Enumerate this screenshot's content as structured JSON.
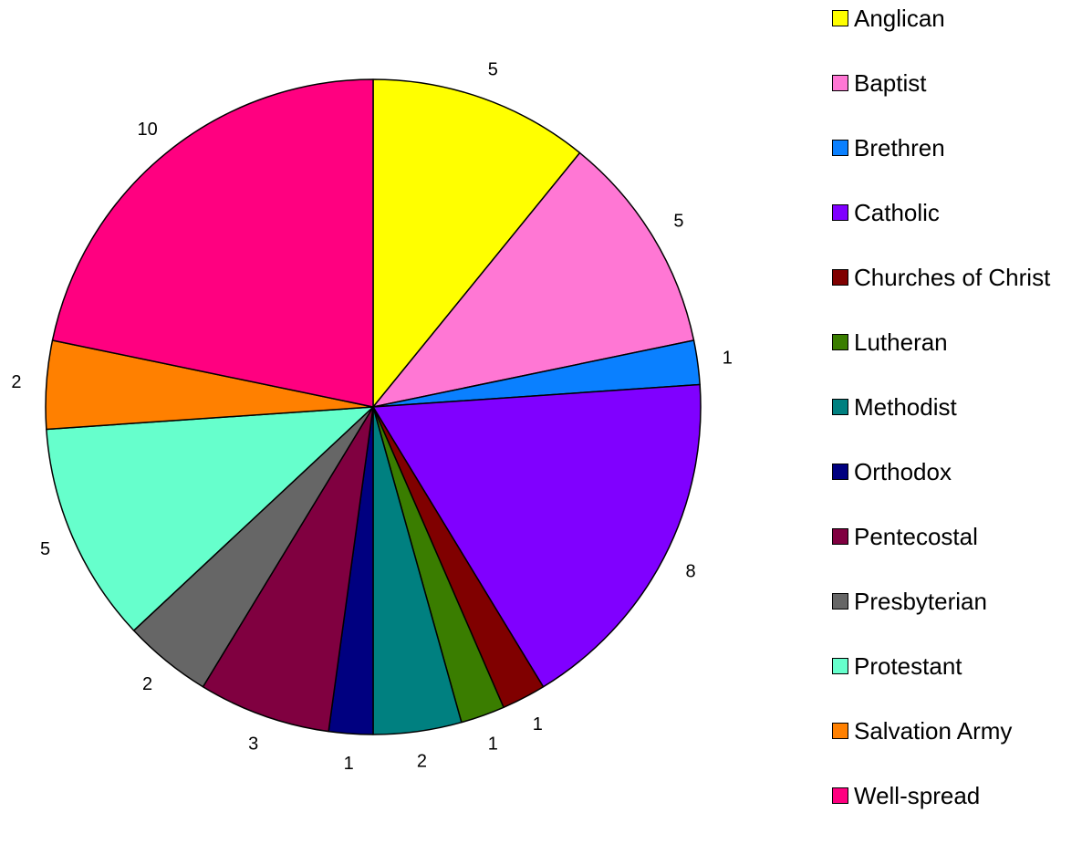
{
  "chart_data": {
    "type": "pie",
    "title": "",
    "start_angle_deg": 90,
    "direction": "clockwise",
    "legend_position": "right",
    "slices": [
      {
        "label": "Anglican",
        "value": 5,
        "color": "#FFFF00"
      },
      {
        "label": "Baptist",
        "value": 5,
        "color": "#FF77D4"
      },
      {
        "label": "Brethren",
        "value": 1,
        "color": "#0A80FF"
      },
      {
        "label": "Catholic",
        "value": 8,
        "color": "#8000FF"
      },
      {
        "label": "Churches of Christ",
        "value": 1,
        "color": "#800000"
      },
      {
        "label": "Lutheran",
        "value": 1,
        "color": "#3A7D00"
      },
      {
        "label": "Methodist",
        "value": 2,
        "color": "#008080"
      },
      {
        "label": "Orthodox",
        "value": 1,
        "color": "#000080"
      },
      {
        "label": "Pentecostal",
        "value": 3,
        "color": "#800040"
      },
      {
        "label": "Presbyterian",
        "value": 2,
        "color": "#666666"
      },
      {
        "label": "Protestant",
        "value": 5,
        "color": "#66FFCC"
      },
      {
        "label": "Salvation Army",
        "value": 2,
        "color": "#FF8000"
      },
      {
        "label": "Well-spread",
        "value": 10,
        "color": "#FF0080"
      }
    ]
  }
}
